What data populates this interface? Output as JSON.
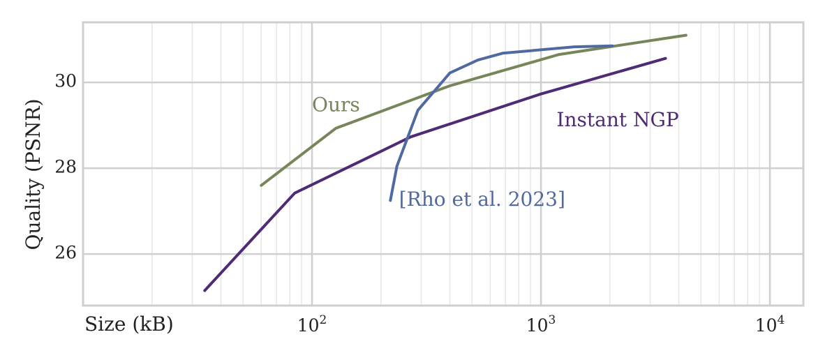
{
  "chart_data": {
    "type": "line",
    "xlabel": "Size (kB)",
    "ylabel": "Quality (PSNR)",
    "xscale": "log",
    "xlim": [
      10,
      14000
    ],
    "ylim": [
      24.8,
      31.4
    ],
    "grid": true,
    "x_ticks": [
      {
        "value": 100,
        "base": "10",
        "exp": "2"
      },
      {
        "value": 1000,
        "base": "10",
        "exp": "3"
      },
      {
        "value": 10000,
        "base": "10",
        "exp": "4"
      }
    ],
    "y_ticks": [
      {
        "value": 26,
        "label": "26"
      },
      {
        "value": 28,
        "label": "28"
      },
      {
        "value": 30,
        "label": "30"
      }
    ],
    "series": [
      {
        "name": "Ours",
        "color": "#76865a",
        "label_at": [
          100,
          29.45
        ],
        "x": [
          60,
          127,
          400,
          1200,
          4300
        ],
        "y": [
          27.6,
          28.93,
          29.92,
          30.65,
          31.1
        ]
      },
      {
        "name": "Instant NGP",
        "color": "#4f2b76",
        "label_at": [
          1170,
          29.1
        ],
        "x": [
          34,
          84,
          270,
          1000,
          3500
        ],
        "y": [
          25.15,
          27.42,
          28.73,
          29.73,
          30.56
        ]
      },
      {
        "name": "[Rho et al. 2023]",
        "color": "#5069a0",
        "label_at": [
          240,
          27.25
        ],
        "x": [
          220,
          235,
          290,
          400,
          530,
          680,
          1400,
          2050
        ],
        "y": [
          27.25,
          28.05,
          29.35,
          30.22,
          30.52,
          30.68,
          30.83,
          30.85
        ]
      }
    ]
  }
}
